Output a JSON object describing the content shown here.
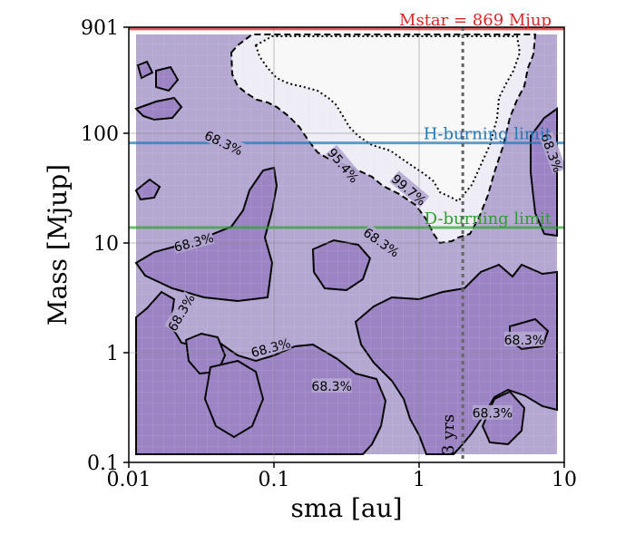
{
  "chart_data": {
    "type": "heatmap",
    "xlabel": "sma [au]",
    "ylabel": "Mass [Mjup]",
    "xscale": "log",
    "yscale": "log",
    "xlim": [
      0.01,
      10
    ],
    "ylim": [
      0.1,
      901
    ],
    "x_tick_labels": [
      "0.01",
      "0.1",
      "1",
      "10"
    ],
    "x_tick_values": [
      0.01,
      0.1,
      1,
      10
    ],
    "y_tick_labels": [
      "0.1",
      "1",
      "10",
      "100",
      "901"
    ],
    "y_tick_values": [
      0.1,
      1,
      10,
      100,
      901
    ],
    "grid": true,
    "colors": {
      "fill_light": "#b4a7d2",
      "fill_mid": "#9c83c4",
      "fill_clear": "#f8f8f8",
      "fill_faint": "#eeedf5",
      "mstar": "#d62728",
      "h_burning": "#1f77b4",
      "d_burning": "#2ca02c",
      "period": "#666666",
      "contour": "#000000"
    },
    "horizontal_lines": [
      {
        "label": "Mstar = 869 Mjup",
        "y": 869,
        "color": "#d62728"
      },
      {
        "label": "H-burning limit",
        "y": 80,
        "color": "#1f77b4"
      },
      {
        "label": "D-burning limit",
        "y": 13.6,
        "color": "#2ca02c"
      }
    ],
    "vertical_lines": [
      {
        "label": "3 yrs",
        "x": 2.0,
        "color": "#666666"
      }
    ],
    "contour_levels": [
      "68.3%",
      "95.4%",
      "99.7%"
    ],
    "contour_labels": [
      {
        "text": "68.3%",
        "x": 0.045,
        "y": 80,
        "angle": 25
      },
      {
        "text": "68.3%",
        "x": 0.028,
        "y": 10,
        "angle": -15
      },
      {
        "text": "68.3%",
        "x": 0.55,
        "y": 10,
        "angle": 35
      },
      {
        "text": "68.3%",
        "x": 0.023,
        "y": 2.3,
        "angle": -60
      },
      {
        "text": "68.3%",
        "x": 0.095,
        "y": 1.1,
        "angle": -15
      },
      {
        "text": "68.3%",
        "x": 0.25,
        "y": 0.49,
        "angle": 0
      },
      {
        "text": "68.3%",
        "x": 5.3,
        "y": 1.3,
        "angle": 0
      },
      {
        "text": "68.3%",
        "x": 3.2,
        "y": 0.28,
        "angle": 0
      },
      {
        "text": "68.3%",
        "x": 8.2,
        "y": 65,
        "angle": 70
      },
      {
        "text": "95.4%",
        "x": 0.3,
        "y": 50,
        "angle": 50
      },
      {
        "text": "99.7%",
        "x": 0.85,
        "y": 30,
        "angle": 40
      }
    ]
  }
}
